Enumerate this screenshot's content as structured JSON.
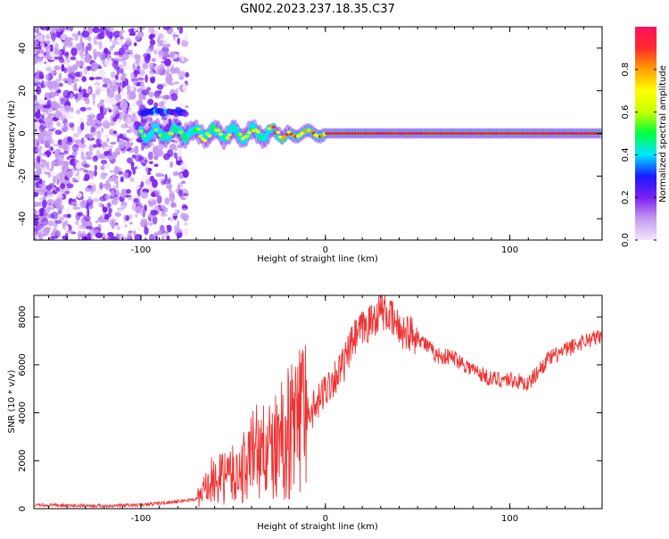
{
  "figure": {
    "title": "GN02.2023.237.18.35.C37"
  },
  "chart_data": [
    {
      "type": "heatmap",
      "title": "",
      "xlabel": "Height of straight line (km)",
      "ylabel": "Frequency (Hz)",
      "xlim": [
        -158,
        150
      ],
      "ylim": [
        -50,
        50
      ],
      "x_ticks": [
        -100,
        0,
        100
      ],
      "x_tick_labels": [
        "-100",
        "0",
        "100"
      ],
      "y_ticks": [
        -40,
        -20,
        0,
        20,
        40
      ],
      "y_tick_labels": [
        "-40",
        "-20",
        "0",
        "20",
        "40"
      ],
      "grid": false,
      "colorbar": {
        "label": "Normalized spectral amplitude",
        "range": [
          0,
          1
        ],
        "ticks": [
          0.0,
          0.2,
          0.4,
          0.6,
          0.8
        ],
        "tick_labels": [
          "0.0",
          "0.2",
          "0.4",
          "0.6",
          "0.8"
        ],
        "colors": [
          "#f2e6fb",
          "#c59bf0",
          "#7a1ff2",
          "#1a1aff",
          "#00e5ff",
          "#00ff40",
          "#c8ff00",
          "#ffff00",
          "#ffa000",
          "#ff2a2a",
          "#ff1060"
        ]
      },
      "features": [
        {
          "name": "noise",
          "x_range": [
            -158,
            -75
          ],
          "freq_range": [
            -50,
            50
          ],
          "amplitude": 0.1
        },
        {
          "name": "upper band",
          "x_range": [
            -100,
            -75
          ],
          "freq": 10,
          "amplitude": 0.3
        },
        {
          "name": "main band",
          "x_range": [
            -100,
            150
          ],
          "freq": 0,
          "amplitude": 0.9
        }
      ]
    },
    {
      "type": "line",
      "title": "",
      "xlabel": "Height of straight line (km)",
      "ylabel": "SNR (10 * v/v)",
      "xlim": [
        -158,
        150
      ],
      "ylim": [
        0,
        8900
      ],
      "x_ticks": [
        -100,
        0,
        100
      ],
      "x_tick_labels": [
        "-100",
        "0",
        "100"
      ],
      "y_ticks": [
        0,
        2000,
        4000,
        6000,
        8000
      ],
      "y_tick_labels": [
        "0",
        "2000",
        "4000",
        "6000",
        "8000"
      ],
      "grid": false,
      "color": "#ee3333",
      "series": [
        {
          "x": [
            -158,
            -140,
            -120,
            -100,
            -80,
            -70,
            -62,
            -55,
            -45,
            -38,
            -30,
            -20,
            -10,
            -5,
            0,
            10,
            15,
            20,
            25,
            30,
            35,
            40,
            50,
            60,
            70,
            80,
            90,
            100,
            110,
            115,
            120,
            130,
            140,
            150
          ],
          "values": [
            150,
            130,
            120,
            150,
            300,
            400,
            1000,
            1300,
            1500,
            2500,
            2300,
            3200,
            4000,
            4200,
            5000,
            6000,
            7000,
            7500,
            7800,
            8300,
            8000,
            7500,
            7200,
            6400,
            6300,
            5800,
            5400,
            5400,
            5200,
            5700,
            6200,
            6600,
            7000,
            7200
          ]
        }
      ]
    }
  ]
}
